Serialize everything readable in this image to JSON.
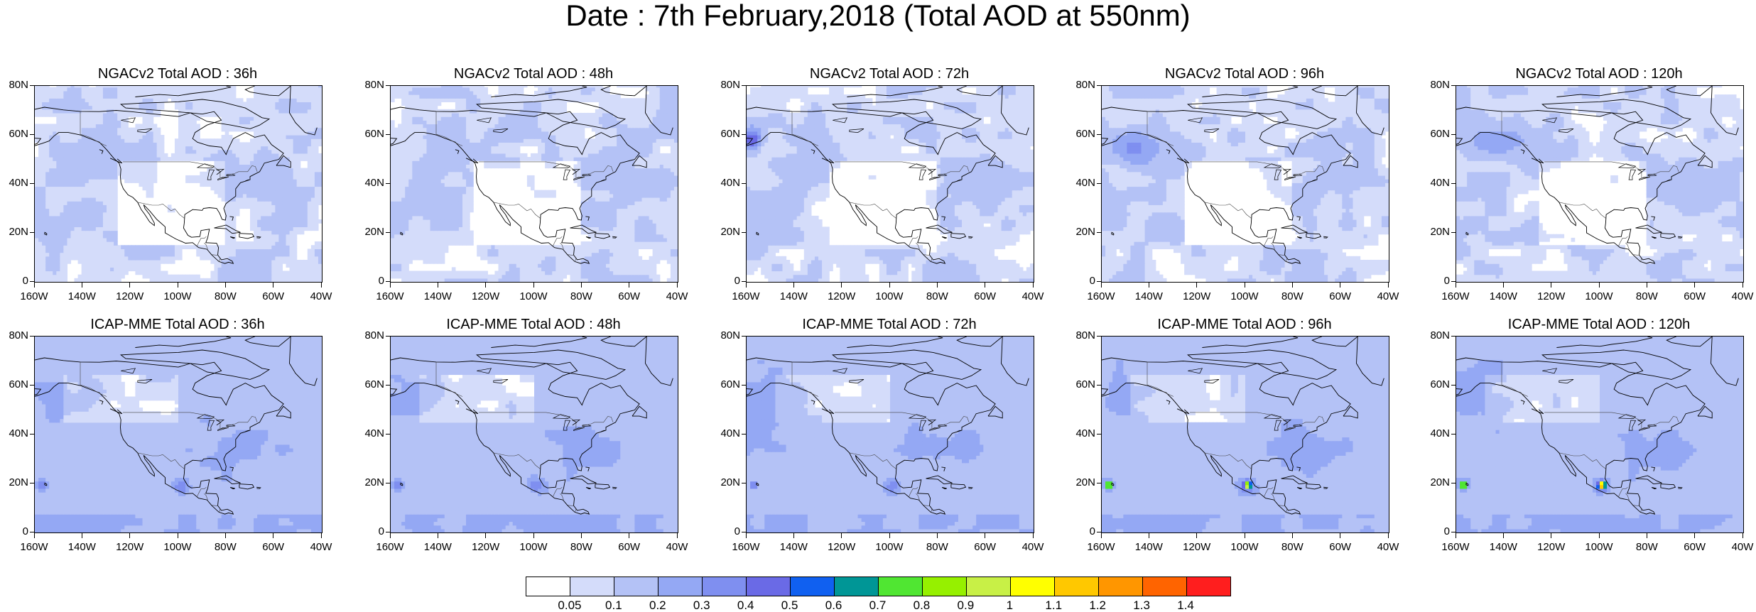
{
  "title": "Date : 7th February,2018 (Total AOD at 550nm)",
  "panels": [
    {
      "title": "NGACv2 Total AOD : 36h",
      "model": "NGACv2",
      "lead": "36h"
    },
    {
      "title": "NGACv2 Total AOD : 48h",
      "model": "NGACv2",
      "lead": "48h"
    },
    {
      "title": "NGACv2 Total AOD : 72h",
      "model": "NGACv2",
      "lead": "72h"
    },
    {
      "title": "NGACv2 Total AOD : 96h",
      "model": "NGACv2",
      "lead": "96h"
    },
    {
      "title": "NGACv2 Total AOD : 120h",
      "model": "NGACv2",
      "lead": "120h"
    },
    {
      "title": "ICAP-MME Total AOD : 36h",
      "model": "ICAP-MME",
      "lead": "36h"
    },
    {
      "title": "ICAP-MME Total AOD : 48h",
      "model": "ICAP-MME",
      "lead": "48h"
    },
    {
      "title": "ICAP-MME Total AOD : 72h",
      "model": "ICAP-MME",
      "lead": "72h"
    },
    {
      "title": "ICAP-MME Total AOD : 96h",
      "model": "ICAP-MME",
      "lead": "96h"
    },
    {
      "title": "ICAP-MME Total AOD : 120h",
      "model": "ICAP-MME",
      "lead": "120h"
    }
  ],
  "lat_labels": [
    "0",
    "20N",
    "40N",
    "60N",
    "80N"
  ],
  "lat_values": [
    0,
    20,
    40,
    60,
    80
  ],
  "lon_labels": [
    "160W",
    "140W",
    "120W",
    "100W",
    "80W",
    "60W",
    "40W"
  ],
  "lon_values": [
    -160,
    -140,
    -120,
    -100,
    -80,
    -60,
    -40
  ],
  "colorbar": {
    "labels": [
      "0.05",
      "0.1",
      "0.2",
      "0.3",
      "0.4",
      "0.5",
      "0.6",
      "0.7",
      "0.8",
      "0.9",
      "1",
      "1.1",
      "1.2",
      "1.3",
      "1.4"
    ],
    "colors": [
      "#ffffff",
      "#d4dcfa",
      "#b4c2f6",
      "#94a8f4",
      "#7f8ff0",
      "#6a6ae6",
      "#1060f0",
      "#009696",
      "#50e632",
      "#96f000",
      "#c8f046",
      "#ffff00",
      "#ffc800",
      "#ff9600",
      "#ff6400",
      "#ff1e1e"
    ]
  }
}
